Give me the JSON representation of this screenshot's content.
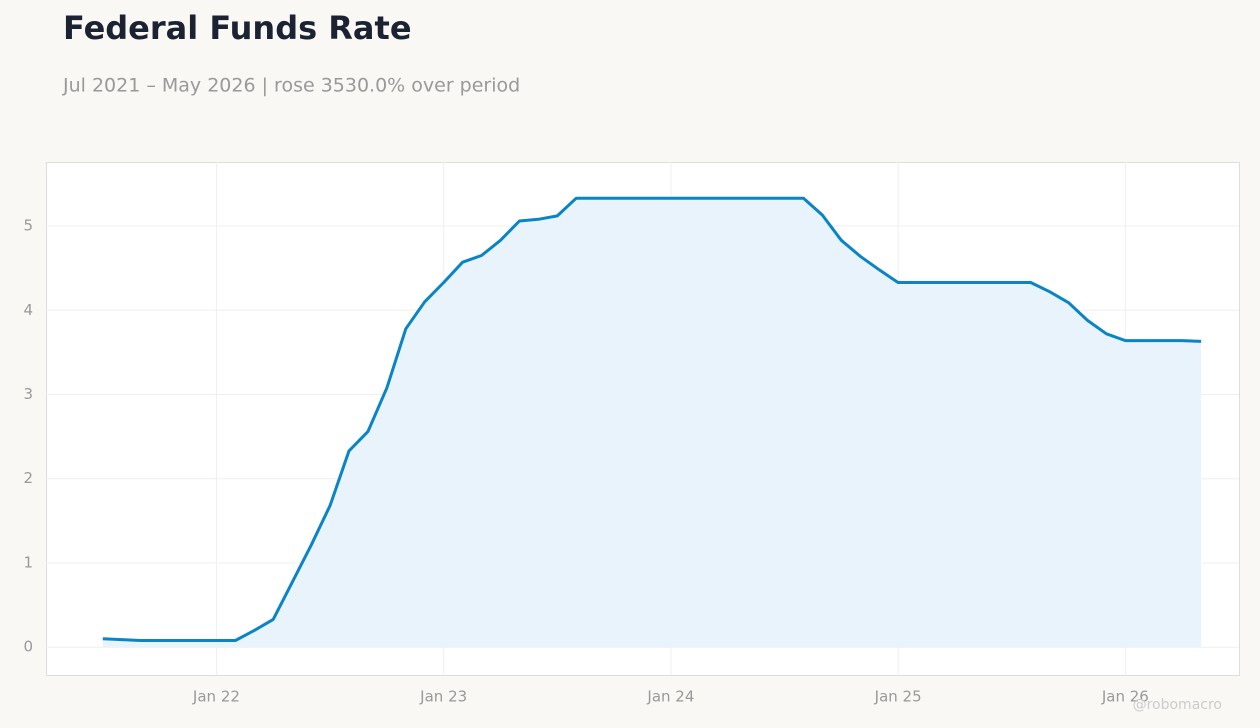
{
  "chart_data": {
    "type": "area-line",
    "title": "Federal Funds Rate",
    "subtitle": "Jul 2021 – May 2026 | rose 3530.0% over period",
    "watermark": "@robomacro",
    "x": [
      "2021-07",
      "2021-08",
      "2021-09",
      "2021-10",
      "2021-11",
      "2021-12",
      "2022-01",
      "2022-02",
      "2022-03",
      "2022-04",
      "2022-05",
      "2022-06",
      "2022-07",
      "2022-08",
      "2022-09",
      "2022-10",
      "2022-11",
      "2022-12",
      "2023-01",
      "2023-02",
      "2023-03",
      "2023-04",
      "2023-05",
      "2023-06",
      "2023-07",
      "2023-08",
      "2023-09",
      "2023-10",
      "2023-11",
      "2023-12",
      "2024-01",
      "2024-02",
      "2024-03",
      "2024-04",
      "2024-05",
      "2024-06",
      "2024-07",
      "2024-08",
      "2024-09",
      "2024-10",
      "2024-11",
      "2024-12",
      "2025-01",
      "2025-02",
      "2025-03",
      "2025-04",
      "2025-05",
      "2025-06",
      "2025-07",
      "2025-08",
      "2025-09",
      "2025-10",
      "2025-11",
      "2025-12",
      "2026-01",
      "2026-02",
      "2026-03",
      "2026-04",
      "2026-05"
    ],
    "series": [
      {
        "name": "Federal Funds Rate",
        "color": "#0a84c6",
        "fill": "#e8f3fb",
        "values": [
          0.1,
          0.09,
          0.08,
          0.08,
          0.08,
          0.08,
          0.08,
          0.08,
          0.2,
          0.33,
          0.77,
          1.21,
          1.68,
          2.33,
          2.56,
          3.08,
          3.78,
          4.1,
          4.33,
          4.57,
          4.65,
          4.83,
          5.06,
          5.08,
          5.12,
          5.33,
          5.33,
          5.33,
          5.33,
          5.33,
          5.33,
          5.33,
          5.33,
          5.33,
          5.33,
          5.33,
          5.33,
          5.33,
          5.13,
          4.83,
          4.64,
          4.48,
          4.33,
          4.33,
          4.33,
          4.33,
          4.33,
          4.33,
          4.33,
          4.33,
          4.22,
          4.09,
          3.88,
          3.72,
          3.64,
          3.64,
          3.64,
          3.64,
          3.63
        ]
      }
    ],
    "xlim": [
      "2021-04",
      "2026-07"
    ],
    "xticks": [
      {
        "value": "2022-01",
        "label": "Jan 22"
      },
      {
        "value": "2023-01",
        "label": "Jan 23"
      },
      {
        "value": "2024-01",
        "label": "Jan 24"
      },
      {
        "value": "2025-01",
        "label": "Jan 25"
      },
      {
        "value": "2026-01",
        "label": "Jan 26"
      }
    ],
    "ylim": [
      -0.33,
      5.76
    ],
    "yticks": [
      0,
      1,
      2,
      3,
      4,
      5
    ],
    "grid": true
  }
}
